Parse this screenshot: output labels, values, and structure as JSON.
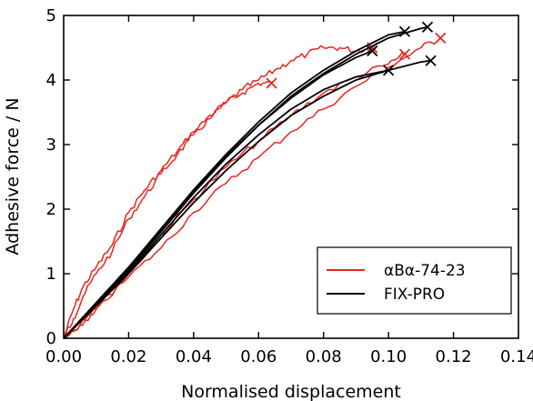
{
  "chart_data": {
    "type": "line",
    "title": "",
    "xlabel": "Normalised displacement",
    "ylabel": "Adhesive force / N",
    "xlim": [
      0,
      0.14
    ],
    "ylim": [
      0,
      5
    ],
    "xticks": [
      "0.00",
      "0.02",
      "0.04",
      "0.06",
      "0.08",
      "0.10",
      "0.12",
      "0.14"
    ],
    "yticks": [
      "0",
      "1",
      "2",
      "3",
      "4",
      "5"
    ],
    "grid": false,
    "legend": {
      "placement": "bottom-right",
      "entries": [
        {
          "label": "αBα-74-23",
          "color": "#e8261f"
        },
        {
          "label": "FIX-PRO",
          "color": "#000000"
        }
      ]
    },
    "series": [
      {
        "group": 0,
        "color": "#e8261f",
        "noisy": true,
        "x": [
          0,
          0.003,
          0.006,
          0.01,
          0.015,
          0.02,
          0.025,
          0.03,
          0.035,
          0.04,
          0.045,
          0.05,
          0.055,
          0.06,
          0.064
        ],
        "y": [
          0,
          0.45,
          0.8,
          1.1,
          1.45,
          1.95,
          2.3,
          2.6,
          2.9,
          3.2,
          3.45,
          3.65,
          3.8,
          3.95,
          3.95
        ],
        "failure_point": [
          0.064,
          3.95
        ]
      },
      {
        "group": 0,
        "color": "#e8261f",
        "noisy": true,
        "x": [
          0,
          0.003,
          0.006,
          0.01,
          0.015,
          0.02,
          0.025,
          0.03,
          0.035,
          0.04,
          0.045,
          0.05,
          0.055,
          0.06,
          0.065,
          0.07,
          0.075,
          0.08,
          0.085,
          0.09,
          0.095
        ],
        "y": [
          0,
          0.3,
          0.65,
          1.0,
          1.35,
          1.85,
          2.2,
          2.55,
          2.85,
          3.15,
          3.4,
          3.65,
          3.85,
          4.0,
          4.15,
          4.3,
          4.4,
          4.5,
          4.5,
          4.45,
          4.5
        ],
        "failure_point": [
          0.095,
          4.5
        ]
      },
      {
        "group": 0,
        "color": "#e8261f",
        "noisy": true,
        "x": [
          0,
          0.005,
          0.01,
          0.02,
          0.03,
          0.04,
          0.05,
          0.06,
          0.07,
          0.08,
          0.09,
          0.1,
          0.105
        ],
        "y": [
          0,
          0.2,
          0.45,
          1.0,
          1.6,
          2.15,
          2.65,
          3.05,
          3.45,
          3.8,
          4.05,
          4.25,
          4.4
        ],
        "failure_point": [
          0.105,
          4.4
        ]
      },
      {
        "group": 0,
        "color": "#e8261f",
        "noisy": true,
        "x": [
          0,
          0.005,
          0.01,
          0.02,
          0.03,
          0.04,
          0.05,
          0.06,
          0.07,
          0.08,
          0.09,
          0.1,
          0.11,
          0.116
        ],
        "y": [
          0,
          0.2,
          0.45,
          0.95,
          1.4,
          1.95,
          2.4,
          2.8,
          3.2,
          3.55,
          3.9,
          4.2,
          4.5,
          4.65
        ],
        "failure_point": [
          0.116,
          4.65
        ]
      },
      {
        "group": 1,
        "color": "#000000",
        "noisy": false,
        "x": [
          0,
          0.01,
          0.02,
          0.03,
          0.04,
          0.05,
          0.06,
          0.07,
          0.08,
          0.09,
          0.1,
          0.105
        ],
        "y": [
          0,
          0.55,
          1.1,
          1.7,
          2.3,
          2.85,
          3.35,
          3.8,
          4.15,
          4.45,
          4.7,
          4.75
        ],
        "failure_point": [
          0.105,
          4.75
        ]
      },
      {
        "group": 1,
        "color": "#000000",
        "noisy": false,
        "x": [
          0,
          0.01,
          0.02,
          0.03,
          0.04,
          0.05,
          0.06,
          0.07,
          0.08,
          0.09,
          0.1,
          0.11,
          0.112
        ],
        "y": [
          0,
          0.5,
          1.05,
          1.65,
          2.25,
          2.8,
          3.3,
          3.75,
          4.1,
          4.4,
          4.65,
          4.8,
          4.82
        ],
        "failure_point": [
          0.112,
          4.82
        ]
      },
      {
        "group": 1,
        "color": "#000000",
        "noisy": false,
        "x": [
          0,
          0.01,
          0.02,
          0.03,
          0.04,
          0.05,
          0.06,
          0.07,
          0.08,
          0.09,
          0.095
        ],
        "y": [
          0,
          0.52,
          1.08,
          1.68,
          2.28,
          2.82,
          3.3,
          3.72,
          4.08,
          4.35,
          4.45
        ],
        "failure_point": [
          0.095,
          4.45
        ]
      },
      {
        "group": 1,
        "color": "#000000",
        "noisy": false,
        "x": [
          0,
          0.01,
          0.02,
          0.03,
          0.04,
          0.05,
          0.06,
          0.07,
          0.08,
          0.09,
          0.1
        ],
        "y": [
          0,
          0.5,
          1.02,
          1.6,
          2.18,
          2.7,
          3.15,
          3.55,
          3.85,
          4.05,
          4.15
        ],
        "failure_point": [
          0.1,
          4.15
        ]
      },
      {
        "group": 1,
        "color": "#000000",
        "noisy": false,
        "x": [
          0,
          0.01,
          0.02,
          0.03,
          0.04,
          0.05,
          0.06,
          0.07,
          0.08,
          0.09,
          0.1,
          0.11,
          0.113
        ],
        "y": [
          0,
          0.5,
          1.0,
          1.55,
          2.1,
          2.6,
          3.05,
          3.45,
          3.75,
          4.0,
          4.15,
          4.28,
          4.3
        ],
        "failure_point": [
          0.113,
          4.3
        ]
      }
    ]
  }
}
